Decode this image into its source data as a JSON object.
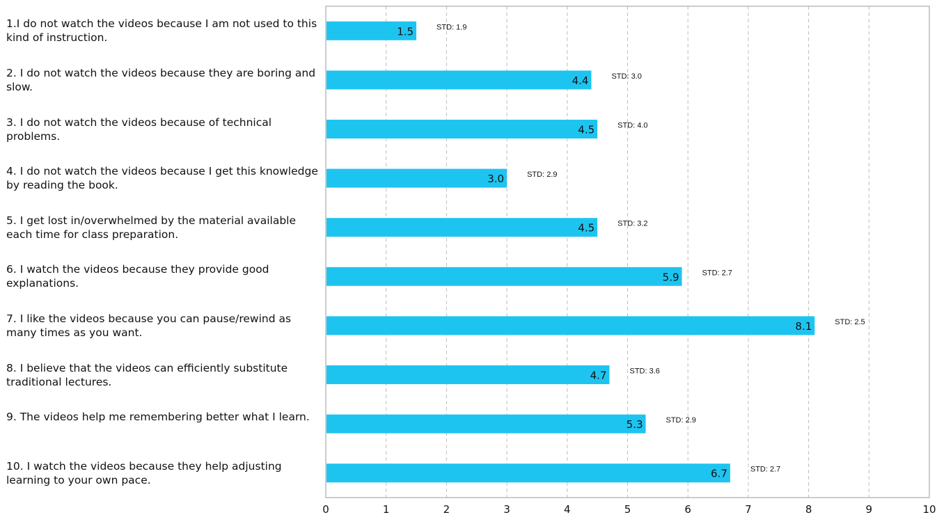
{
  "chart_data": {
    "type": "bar",
    "orientation": "horizontal",
    "title": "",
    "xlabel": "",
    "ylabel": "",
    "xlim": [
      0,
      10
    ],
    "x_ticks": [
      0,
      1,
      2,
      3,
      4,
      5,
      6,
      7,
      8,
      9,
      10
    ],
    "grid": "vertical dashed",
    "bar_color": "#1ec4f0",
    "categories": [
      "1.I do not watch the videos because I am not used to this kind of instruction.",
      "2. I  do not watch the videos because they are boring and slow.",
      "3. I  do not watch the videos because of technical problems.",
      "4. I  do not watch the videos because I get this knowledge by reading the book.",
      "5. I  get lost in/overwhelmed by the material available each time for class  preparation.",
      "6. I  watch the videos because they provide good explanations.",
      "7. I  like the videos because you can pause/rewind as many times as you want.",
      "8. I believe that the videos can efficiently substitute traditional lectures.",
      "9. The  videos help me remembering better what I learn.",
      "10. I watch the videos because they help adjusting learning to your own pace."
    ],
    "values": [
      1.5,
      4.4,
      4.5,
      3.0,
      4.5,
      5.9,
      8.1,
      4.7,
      5.3,
      6.7
    ],
    "value_labels": [
      "1.5",
      "4.4",
      "4.5",
      "3.0",
      "4.5",
      "5.9",
      "8.1",
      "4.7",
      "5.3",
      "6.7"
    ],
    "std_labels": [
      "STD: 1.9",
      "STD: 3.0",
      "STD: 4.0",
      "STD: 2.9",
      "STD: 3.2",
      "STD: 2.7",
      "STD: 2.5",
      "STD: 3.6",
      "STD: 2.9",
      "STD: 2.7"
    ]
  }
}
